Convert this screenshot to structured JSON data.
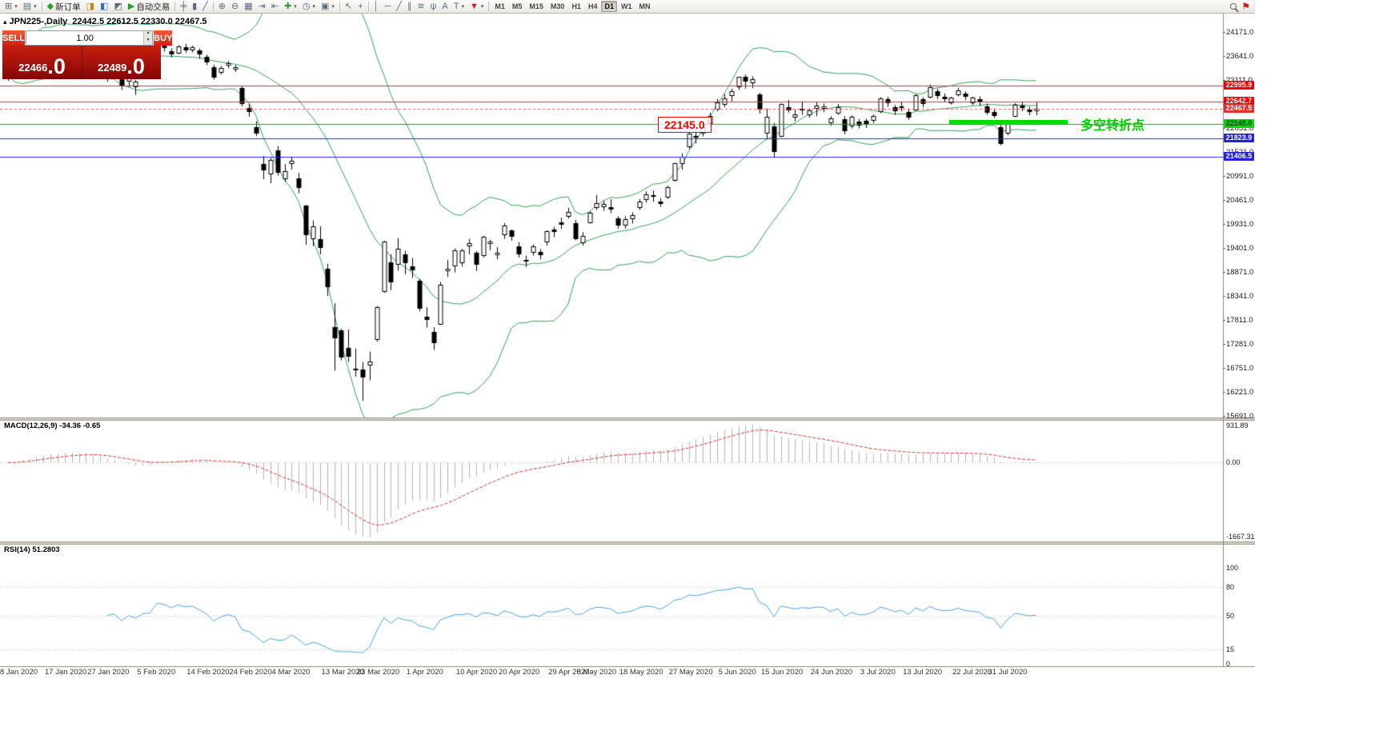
{
  "toolbar": {
    "new_order_label": "新订单",
    "autotrading_label": "自动交易",
    "timeframes": [
      "M1",
      "M5",
      "M15",
      "M30",
      "H1",
      "H4",
      "D1",
      "W1",
      "MN"
    ],
    "active_timeframe": "D1"
  },
  "icons": {
    "new_chart": "⊞",
    "profiles": "▤",
    "new_order_diamond": "◆",
    "terminal": "◨",
    "metaeditor": "◧",
    "options": "◩",
    "autotrading_play": "▶",
    "bars": "╪",
    "candles": "▮",
    "line_chart": "╱",
    "zoom_in": "⊕",
    "zoom_out": "⊖",
    "tile_windows": "▦",
    "autoscroll": "⇥",
    "chart_shift": "⇤",
    "indicators_plus": "✚",
    "periods_clock": "◷",
    "templates": "▣",
    "cursor": "↖",
    "crosshair": "+",
    "vline": "│",
    "hline": "─",
    "trendline": "╱",
    "channel": "∥",
    "fibonacci": "≋",
    "pitchfork": "ψ",
    "text": "A",
    "label": "T",
    "arrows": "▼",
    "dropdown": "▾",
    "flag": "⚑",
    "collapse_marker": "▴"
  },
  "chart": {
    "symbol_period": "JPN225-,Daily",
    "ohlc": "22442.5 22612.5 22330.0 22467.5"
  },
  "one_click": {
    "sell_label": "SELL",
    "buy_label": "BUY",
    "volume": "1.00",
    "sell_price": "22466",
    "sell_price_frac": ".0",
    "buy_price": "22489",
    "buy_price_frac": ".0"
  },
  "annotations": {
    "price_box_label": "22145.0",
    "turning_point_label": "多空转折点"
  },
  "macd": {
    "label": "MACD(12,26,9) -34.36 -0.65",
    "max_label": "931.89",
    "zero_label": "0.00",
    "min_label": "-1667.31"
  },
  "rsi": {
    "label": "RSI(14) 51.2803",
    "level_labels": [
      {
        "label": "100",
        "value": 100
      },
      {
        "label": "80",
        "value": 80
      },
      {
        "label": "50",
        "value": 50
      },
      {
        "label": "15",
        "value": 15
      },
      {
        "label": "0",
        "value": 0
      }
    ]
  },
  "price_axis": {
    "ticks": [
      "24171.0",
      "23641.0",
      "23111.0",
      "22581.0",
      "22051.0",
      "21521.0",
      "20991.0",
      "20461.0",
      "19931.0",
      "19401.0",
      "18871.0",
      "18341.0",
      "17811.0",
      "17281.0",
      "16751.0",
      "16221.0",
      "15691.0"
    ],
    "tags": [
      {
        "label": "22995.9",
        "price": 22995.9,
        "bg": "#f00000",
        "fg": "#ffffff"
      },
      {
        "label": "22642.7",
        "price": 22642.7,
        "bg": "#f00000",
        "fg": "#ffffff"
      },
      {
        "label": "22467.5",
        "price": 22467.5,
        "bg": "#e03030",
        "fg": "#ffffff"
      },
      {
        "label": "22145.0",
        "price": 22145.0,
        "bg": "#00d800",
        "fg": "#002b00"
      },
      {
        "label": "21823.9",
        "price": 21823.9,
        "bg": "#2323dd",
        "fg": "#ffffff"
      },
      {
        "label": "21406.5",
        "price": 21406.5,
        "bg": "#2323dd",
        "fg": "#ffffff"
      }
    ]
  },
  "chart_data": {
    "type": "candlestick",
    "symbol": "JPN225-",
    "timeframe": "Daily",
    "last_ohlc": {
      "open": 22442.5,
      "high": 22612.5,
      "low": 22330.0,
      "close": 22467.5
    },
    "y_axis": {
      "min": 15691.0,
      "max": 24171.0,
      "tick_step": 530.0
    },
    "horizontal_lines": [
      {
        "price": 22995.9,
        "color": "#ff2020",
        "style": "solid"
      },
      {
        "price": 22642.7,
        "color": "#ff2020",
        "style": "solid"
      },
      {
        "price": 22467.5,
        "color": "#ff5050",
        "style": "dashed"
      },
      {
        "price": 22145.0,
        "color": "#00b400",
        "style": "solid"
      },
      {
        "price": 21823.9,
        "color": "#2828e0",
        "style": "solid"
      },
      {
        "price": 21406.5,
        "color": "#2828e0",
        "style": "solid"
      }
    ],
    "trendline": {
      "price": 22145.0,
      "color": "#00dc00",
      "note": "thick green segment near right edge"
    },
    "indicators": {
      "bollinger": {
        "period": 20,
        "deviation": 2,
        "color": "#33a05a"
      },
      "macd": {
        "fast": 12,
        "slow": 26,
        "signal": 9,
        "value": -34.36,
        "signal_value": -0.65,
        "scale_max": 931.89,
        "scale_min": -1667.31,
        "histogram_color": "#b4b4b4",
        "signal_color": "#e03030"
      },
      "rsi": {
        "period": 14,
        "value": 51.2803,
        "levels": [
          80,
          50,
          15
        ],
        "color": "#4aa3e8"
      }
    },
    "date_labels": [
      {
        "label": "8 Jan 2020",
        "index": 0
      },
      {
        "label": "17 Jan 2020",
        "index": 7
      },
      {
        "label": "27 Jan 2020",
        "index": 13
      },
      {
        "label": "5 Feb 2020",
        "index": 20
      },
      {
        "label": "14 Feb 2020",
        "index": 27
      },
      {
        "label": "24 Feb 2020",
        "index": 33
      },
      {
        "label": "4 Mar 2020",
        "index": 39
      },
      {
        "label": "13 Mar 2020",
        "index": 46
      },
      {
        "label": "23 Mar 2020",
        "index": 51
      },
      {
        "label": "1 Apr 2020",
        "index": 58
      },
      {
        "label": "10 Apr 2020",
        "index": 65
      },
      {
        "label": "20 Apr 2020",
        "index": 71
      },
      {
        "label": "29 Apr 2020",
        "index": 78
      },
      {
        "label": "8 May 2020",
        "index": 82
      },
      {
        "label": "18 May 2020",
        "index": 88
      },
      {
        "label": "27 May 2020",
        "index": 95
      },
      {
        "label": "5 Jun 2020",
        "index": 102
      },
      {
        "label": "15 Jun 2020",
        "index": 108
      },
      {
        "label": "24 Jun 2020",
        "index": 115
      },
      {
        "label": "3 Jul 2020",
        "index": 122
      },
      {
        "label": "13 Jul 2020",
        "index": 128
      },
      {
        "label": "22 Jul 2020",
        "index": 135
      },
      {
        "label": "31 Jul 2020",
        "index": 140
      }
    ],
    "candles": [
      [
        23210,
        23350,
        23090,
        23200
      ],
      [
        23270,
        23500,
        23250,
        23470
      ],
      [
        23500,
        23760,
        23480,
        23740
      ],
      [
        23760,
        23900,
        23710,
        23850
      ],
      [
        23850,
        23950,
        23780,
        23920
      ],
      [
        23940,
        24060,
        23870,
        24030
      ],
      [
        24010,
        24050,
        23830,
        23910
      ],
      [
        23920,
        24090,
        23890,
        24040
      ],
      [
        24050,
        24120,
        23980,
        24080
      ],
      [
        24010,
        24040,
        23760,
        23860
      ],
      [
        23880,
        23970,
        23820,
        23930
      ],
      [
        23950,
        24020,
        23870,
        23980
      ],
      [
        23900,
        23950,
        23750,
        23830
      ],
      [
        23580,
        23600,
        23280,
        23340
      ],
      [
        23210,
        23290,
        23070,
        23220
      ],
      [
        23290,
        23360,
        23150,
        23280
      ],
      [
        23120,
        23180,
        22890,
        22980
      ],
      [
        23090,
        23260,
        22950,
        23200
      ],
      [
        22970,
        23120,
        22780,
        23080
      ],
      [
        23200,
        23330,
        23140,
        23280
      ],
      [
        23380,
        23430,
        23240,
        23320
      ],
      [
        23640,
        23890,
        23600,
        23870
      ],
      [
        23870,
        23920,
        23740,
        23830
      ],
      [
        23740,
        23810,
        23610,
        23690
      ],
      [
        23720,
        23880,
        23680,
        23860
      ],
      [
        23840,
        23910,
        23710,
        23790
      ],
      [
        23790,
        23870,
        23720,
        23830
      ],
      [
        23760,
        23810,
        23580,
        23690
      ],
      [
        23620,
        23670,
        23440,
        23520
      ],
      [
        23400,
        23450,
        23120,
        23190
      ],
      [
        23290,
        23420,
        23230,
        23380
      ],
      [
        23440,
        23530,
        23370,
        23480
      ],
      [
        23350,
        23440,
        23290,
        23390
      ],
      [
        22940,
        22980,
        22530,
        22600
      ],
      [
        22500,
        22590,
        22300,
        22430
      ],
      [
        22070,
        22200,
        21870,
        21950
      ],
      [
        21260,
        21430,
        20920,
        21140
      ],
      [
        21050,
        21390,
        20830,
        21340
      ],
      [
        21550,
        21650,
        21000,
        21080
      ],
      [
        20940,
        21250,
        20860,
        21100
      ],
      [
        21280,
        21400,
        21130,
        21330
      ],
      [
        20940,
        21060,
        20610,
        20750
      ],
      [
        20340,
        20350,
        19470,
        19700
      ],
      [
        19620,
        20010,
        19440,
        19870
      ],
      [
        19600,
        19880,
        19260,
        19420
      ],
      [
        18940,
        19050,
        18340,
        18560
      ],
      [
        17660,
        18180,
        16690,
        17430
      ],
      [
        17580,
        17620,
        16920,
        17000
      ],
      [
        17200,
        17600,
        16880,
        17010
      ],
      [
        16730,
        17180,
        16560,
        16730
      ],
      [
        16710,
        16880,
        16020,
        16550
      ],
      [
        16830,
        17110,
        16480,
        16890
      ],
      [
        17380,
        18120,
        17330,
        18090
      ],
      [
        18450,
        19560,
        18410,
        19550
      ],
      [
        19090,
        19260,
        18470,
        18660
      ],
      [
        19040,
        19620,
        18900,
        19390
      ],
      [
        19260,
        19340,
        18820,
        19080
      ],
      [
        19000,
        19180,
        18740,
        18920
      ],
      [
        18680,
        18720,
        18000,
        18070
      ],
      [
        17880,
        18090,
        17640,
        17820
      ],
      [
        17540,
        17650,
        17150,
        17320
      ],
      [
        17720,
        18650,
        17700,
        18580
      ],
      [
        18900,
        19140,
        18760,
        18950
      ],
      [
        19010,
        19390,
        18860,
        19350
      ],
      [
        19080,
        19380,
        18990,
        19340
      ],
      [
        19460,
        19600,
        19260,
        19500
      ],
      [
        19300,
        19330,
        18890,
        19040
      ],
      [
        19250,
        19670,
        19190,
        19640
      ],
      [
        19500,
        19580,
        19350,
        19550
      ],
      [
        19260,
        19420,
        19150,
        19290
      ],
      [
        19700,
        19950,
        19600,
        19900
      ],
      [
        19790,
        19810,
        19560,
        19670
      ],
      [
        19430,
        19530,
        19190,
        19280
      ],
      [
        19130,
        19230,
        18980,
        19140
      ],
      [
        19310,
        19480,
        19230,
        19430
      ],
      [
        19310,
        19380,
        19150,
        19260
      ],
      [
        19550,
        19790,
        19450,
        19780
      ],
      [
        19810,
        19870,
        19640,
        19770
      ],
      [
        19960,
        20070,
        19820,
        19930
      ],
      [
        20110,
        20290,
        20050,
        20190
      ],
      [
        19940,
        20020,
        19570,
        19620
      ],
      [
        19530,
        19750,
        19450,
        19670
      ],
      [
        19970,
        20210,
        19940,
        20180
      ],
      [
        20310,
        20570,
        20240,
        20390
      ],
      [
        20320,
        20440,
        20220,
        20370
      ],
      [
        20310,
        20480,
        20170,
        20270
      ],
      [
        20050,
        20100,
        19830,
        19910
      ],
      [
        19910,
        20100,
        19830,
        20040
      ],
      [
        20060,
        20190,
        19940,
        20130
      ],
      [
        20300,
        20480,
        20240,
        20430
      ],
      [
        20470,
        20650,
        20400,
        20590
      ],
      [
        20560,
        20670,
        20420,
        20550
      ],
      [
        20420,
        20500,
        20310,
        20390
      ],
      [
        20540,
        20780,
        20480,
        20740
      ],
      [
        20910,
        21280,
        20870,
        21270
      ],
      [
        21280,
        21490,
        21130,
        21420
      ],
      [
        21650,
        21950,
        21590,
        21920
      ],
      [
        21870,
        22000,
        21710,
        21880
      ],
      [
        21940,
        22100,
        21860,
        22060
      ],
      [
        22150,
        22390,
        22060,
        22320
      ],
      [
        22480,
        22690,
        22420,
        22610
      ],
      [
        22580,
        22800,
        22510,
        22700
      ],
      [
        22780,
        22920,
        22640,
        22860
      ],
      [
        22970,
        23180,
        22890,
        23180
      ],
      [
        23190,
        23230,
        22920,
        23090
      ],
      [
        23050,
        23190,
        22930,
        23120
      ],
      [
        22790,
        22830,
        22370,
        22470
      ],
      [
        21940,
        22480,
        21820,
        22300
      ],
      [
        22090,
        22160,
        21390,
        21530
      ],
      [
        21880,
        22590,
        21850,
        22580
      ],
      [
        22510,
        22670,
        22390,
        22460
      ],
      [
        22290,
        22460,
        22200,
        22360
      ],
      [
        22480,
        22640,
        22340,
        22480
      ],
      [
        22350,
        22480,
        22280,
        22440
      ],
      [
        22490,
        22620,
        22310,
        22550
      ],
      [
        22490,
        22590,
        22400,
        22530
      ],
      [
        22170,
        22310,
        22100,
        22260
      ],
      [
        22390,
        22580,
        22340,
        22510
      ],
      [
        22250,
        22310,
        21910,
        21990
      ],
      [
        22110,
        22330,
        22040,
        22290
      ],
      [
        22190,
        22250,
        22040,
        22120
      ],
      [
        22210,
        22260,
        22050,
        22150
      ],
      [
        22230,
        22350,
        22160,
        22310
      ],
      [
        22420,
        22730,
        22380,
        22710
      ],
      [
        22680,
        22740,
        22520,
        22610
      ],
      [
        22510,
        22560,
        22340,
        22440
      ],
      [
        22520,
        22630,
        22420,
        22530
      ],
      [
        22400,
        22480,
        22230,
        22290
      ],
      [
        22460,
        22800,
        22430,
        22780
      ],
      [
        22680,
        22730,
        22510,
        22590
      ],
      [
        22740,
        23010,
        22700,
        22950
      ],
      [
        22870,
        22920,
        22690,
        22770
      ],
      [
        22740,
        22810,
        22630,
        22700
      ],
      [
        22620,
        22740,
        22570,
        22720
      ],
      [
        22800,
        22940,
        22750,
        22880
      ],
      [
        22810,
        22860,
        22670,
        22750
      ],
      [
        22620,
        22740,
        22560,
        22720
      ],
      [
        22680,
        22750,
        22540,
        22660
      ],
      [
        22520,
        22590,
        22340,
        22400
      ],
      [
        22400,
        22480,
        22270,
        22340
      ],
      [
        22070,
        22120,
        21670,
        21710
      ],
      [
        21940,
        22230,
        21890,
        22200
      ],
      [
        22320,
        22600,
        22290,
        22570
      ],
      [
        22550,
        22620,
        22420,
        22510
      ],
      [
        22460,
        22520,
        22330,
        22420
      ],
      [
        22442.5,
        22612.5,
        22330.0,
        22467.5
      ]
    ]
  }
}
